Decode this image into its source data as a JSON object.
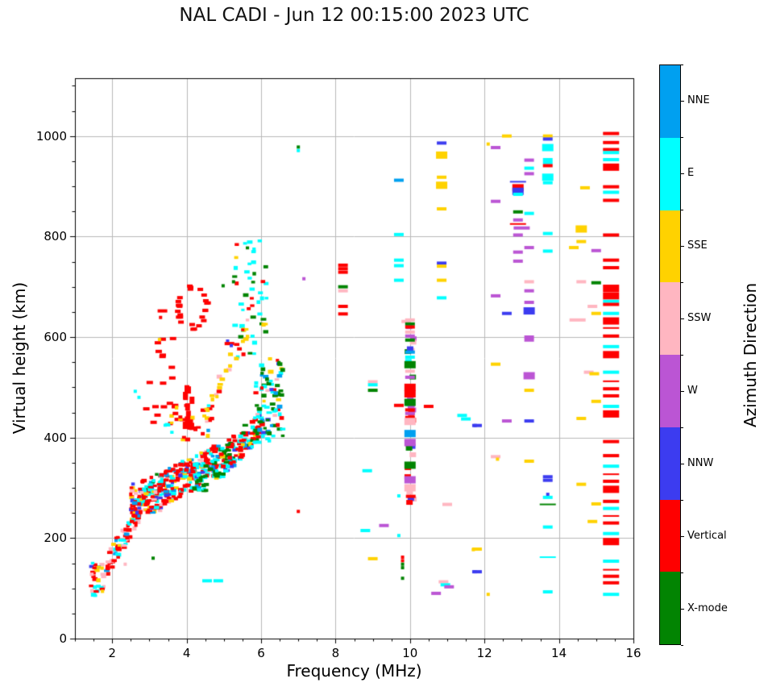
{
  "chart_data": {
    "type": "scatter",
    "title": "NAL CADI - Jun 12 00:15:00 2023 UTC",
    "xlabel": "Frequency (MHz)",
    "ylabel": "Virtual height (km)",
    "colorbar_label": "Azimuth Direction",
    "xlim": [
      1,
      16
    ],
    "ylim": [
      0,
      1115
    ],
    "xticks": [
      2,
      4,
      6,
      8,
      10,
      12,
      14,
      16
    ],
    "yticks": [
      0,
      200,
      400,
      600,
      800,
      1000
    ],
    "x_minor_step": 0.5,
    "y_minor_step": 50,
    "grid": true,
    "background": "#ffffff",
    "grid_color": "#b8b8b8",
    "spine_color": "#000000",
    "categories": [
      {
        "label": "NNE",
        "color": "#00a0f0"
      },
      {
        "label": "E",
        "color": "#00ffff"
      },
      {
        "label": "SSE",
        "color": "#ffd200"
      },
      {
        "label": "SSW",
        "color": "#ffb6c1"
      },
      {
        "label": "W",
        "color": "#bb55d4"
      },
      {
        "label": "NNW",
        "color": "#3c3cf0"
      },
      {
        "label": "Vertical",
        "color": "#fe0000"
      },
      {
        "label": "X-mode",
        "color": "#028402"
      }
    ],
    "encoding": "points are [frequency_MHz, virtual_height_km, direction_index, mark_size]; clusters approximate dense echo regions",
    "points": [
      [
        7.0,
        978,
        7,
        1
      ],
      [
        7.0,
        971,
        1,
        1
      ],
      [
        7.15,
        716,
        4,
        1
      ],
      [
        8.2,
        743,
        6,
        2
      ],
      [
        8.2,
        736,
        6,
        2
      ],
      [
        8.2,
        729,
        6,
        2
      ],
      [
        8.2,
        700,
        7,
        2
      ],
      [
        8.2,
        692,
        3,
        2
      ],
      [
        8.2,
        661,
        6,
        2
      ],
      [
        8.2,
        646,
        6,
        2
      ],
      [
        9.0,
        511,
        3,
        2
      ],
      [
        9.0,
        505,
        1,
        2
      ],
      [
        9.0,
        494,
        7,
        2
      ],
      [
        9.7,
        464,
        6,
        2
      ],
      [
        10.5,
        462,
        6,
        2
      ],
      [
        11.4,
        444,
        1,
        2
      ],
      [
        11.5,
        437,
        1,
        2
      ],
      [
        11.75,
        424,
        5,
        1
      ],
      [
        8.85,
        334,
        1,
        2
      ],
      [
        9.7,
        284,
        1,
        1
      ],
      [
        11.0,
        267,
        3,
        2
      ],
      [
        9.3,
        225,
        4,
        2
      ],
      [
        8.8,
        215,
        1,
        2
      ],
      [
        9.7,
        205,
        1,
        1
      ],
      [
        9.0,
        159,
        2,
        2
      ],
      [
        11.7,
        177,
        2,
        1
      ],
      [
        11.75,
        133,
        5,
        1
      ],
      [
        10.9,
        113,
        3,
        2
      ],
      [
        10.95,
        107,
        1,
        2
      ],
      [
        11.05,
        103,
        4,
        2
      ],
      [
        10.7,
        90,
        4,
        2
      ],
      [
        9.9,
        631,
        3,
        2
      ],
      [
        9.7,
        912,
        0,
        2
      ],
      [
        9.7,
        804,
        1,
        2
      ],
      [
        9.7,
        753,
        1,
        2
      ],
      [
        9.7,
        742,
        1,
        2
      ],
      [
        9.7,
        713,
        1,
        2
      ],
      [
        10.85,
        986,
        5,
        2
      ],
      [
        10.85,
        962,
        2,
        5
      ],
      [
        10.85,
        918,
        2,
        2
      ],
      [
        10.85,
        902,
        2,
        5
      ],
      [
        10.85,
        855,
        2,
        2
      ],
      [
        10.85,
        747,
        5,
        2
      ],
      [
        10.85,
        741,
        2,
        2
      ],
      [
        10.85,
        713,
        2,
        2
      ],
      [
        10.85,
        678,
        1,
        2
      ],
      [
        12.1,
        984,
        2,
        1
      ],
      [
        12.3,
        977,
        4,
        2
      ],
      [
        12.6,
        1000,
        2,
        2
      ],
      [
        13.7,
        1000,
        2,
        2
      ],
      [
        13.7,
        994,
        5,
        2
      ],
      [
        13.7,
        977,
        1,
        5
      ],
      [
        13.7,
        953,
        1,
        2
      ],
      [
        13.7,
        947,
        1,
        2
      ],
      [
        13.7,
        941,
        6,
        2
      ],
      [
        13.7,
        918,
        1,
        5
      ],
      [
        13.7,
        907,
        1,
        2
      ],
      [
        13.7,
        806,
        1,
        2
      ],
      [
        13.7,
        771,
        1,
        2
      ],
      [
        13.7,
        322,
        5,
        2
      ],
      [
        13.7,
        315,
        5,
        2
      ],
      [
        13.7,
        287,
        5,
        1
      ],
      [
        13.7,
        281,
        1,
        2
      ],
      [
        13.7,
        267,
        7,
        6
      ],
      [
        13.7,
        222,
        1,
        2
      ],
      [
        13.7,
        162,
        1,
        6
      ],
      [
        13.7,
        93,
        1,
        2
      ],
      [
        13.2,
        952,
        4,
        2
      ],
      [
        13.2,
        936,
        1,
        2
      ],
      [
        13.2,
        925,
        4,
        2
      ],
      [
        13.2,
        846,
        1,
        2
      ],
      [
        13.2,
        778,
        4,
        2
      ],
      [
        13.2,
        710,
        3,
        2
      ],
      [
        13.2,
        692,
        4,
        2
      ],
      [
        13.2,
        669,
        4,
        2
      ],
      [
        13.2,
        652,
        5,
        5
      ],
      [
        13.2,
        600,
        4,
        2
      ],
      [
        13.2,
        594,
        4,
        2
      ],
      [
        13.2,
        523,
        4,
        5
      ],
      [
        13.2,
        494,
        2,
        2
      ],
      [
        13.2,
        433,
        5,
        2
      ],
      [
        13.2,
        353,
        2,
        2
      ],
      [
        12.9,
        909,
        5,
        6
      ],
      [
        12.9,
        897,
        6,
        5
      ],
      [
        12.9,
        890,
        5,
        5
      ],
      [
        12.9,
        884,
        1,
        2
      ],
      [
        12.9,
        849,
        7,
        2
      ],
      [
        12.9,
        833,
        4,
        2
      ],
      [
        12.9,
        825,
        6,
        6
      ],
      [
        13.0,
        817,
        4,
        3
      ],
      [
        12.9,
        803,
        4,
        2
      ],
      [
        12.9,
        769,
        4,
        2
      ],
      [
        12.9,
        751,
        4,
        2
      ],
      [
        14.7,
        897,
        2,
        2
      ],
      [
        14.6,
        815,
        2,
        5
      ],
      [
        14.6,
        790,
        2,
        2
      ],
      [
        14.4,
        778,
        2,
        2
      ],
      [
        14.6,
        710,
        3,
        2
      ],
      [
        14.5,
        634,
        3,
        3
      ],
      [
        14.6,
        438,
        2,
        2
      ],
      [
        14.6,
        307,
        2,
        2
      ],
      [
        14.9,
        661,
        3,
        2
      ],
      [
        14.8,
        530,
        3,
        2
      ],
      [
        14.95,
        527,
        2,
        2
      ],
      [
        14.9,
        233,
        2,
        2
      ],
      [
        15.0,
        772,
        4,
        2
      ],
      [
        15.0,
        708,
        7,
        2
      ],
      [
        15.0,
        647,
        2,
        2
      ],
      [
        15.0,
        472,
        2,
        2
      ],
      [
        15.0,
        268,
        2,
        2
      ],
      [
        12.3,
        870,
        4,
        2
      ],
      [
        12.3,
        682,
        4,
        2
      ],
      [
        12.3,
        546,
        2,
        2
      ],
      [
        12.3,
        362,
        3,
        2
      ],
      [
        12.35,
        357,
        2,
        1
      ],
      [
        12.6,
        647,
        5,
        2
      ],
      [
        12.6,
        433,
        4,
        2
      ],
      [
        12.1,
        88,
        2,
        1
      ],
      [
        11.8,
        424,
        5,
        2
      ],
      [
        11.8,
        178,
        2,
        2
      ],
      [
        11.8,
        133,
        5,
        2
      ],
      [
        15.4,
        1005,
        6,
        3
      ],
      [
        15.4,
        987,
        6,
        3
      ],
      [
        15.4,
        973,
        6,
        3
      ],
      [
        15.4,
        967,
        1,
        3
      ],
      [
        15.4,
        953,
        1,
        3
      ],
      [
        15.4,
        938,
        6,
        4
      ],
      [
        15.4,
        899,
        6,
        3
      ],
      [
        15.4,
        888,
        1,
        3
      ],
      [
        15.4,
        872,
        6,
        3
      ],
      [
        15.4,
        803,
        6,
        3
      ],
      [
        15.4,
        753,
        6,
        3
      ],
      [
        15.4,
        738,
        6,
        3
      ],
      [
        15.4,
        697,
        6,
        4
      ],
      [
        15.4,
        682,
        6,
        4
      ],
      [
        15.4,
        671,
        1,
        3
      ],
      [
        15.4,
        665,
        6,
        3
      ],
      [
        15.4,
        647,
        1,
        3
      ],
      [
        15.4,
        632,
        6,
        4
      ],
      [
        15.4,
        618,
        6,
        6
      ],
      [
        15.4,
        602,
        6,
        3
      ],
      [
        15.4,
        581,
        1,
        3
      ],
      [
        15.4,
        565,
        6,
        4
      ],
      [
        15.4,
        530,
        1,
        3
      ],
      [
        15.4,
        512,
        6,
        6
      ],
      [
        15.4,
        497,
        6,
        3
      ],
      [
        15.4,
        483,
        6,
        3
      ],
      [
        15.4,
        462,
        1,
        3
      ],
      [
        15.4,
        447,
        6,
        4
      ],
      [
        15.4,
        392,
        6,
        3
      ],
      [
        15.4,
        364,
        6,
        3
      ],
      [
        15.4,
        343,
        1,
        3
      ],
      [
        15.4,
        327,
        6,
        6
      ],
      [
        15.4,
        313,
        6,
        3
      ],
      [
        15.4,
        297,
        6,
        4
      ],
      [
        15.4,
        273,
        6,
        3
      ],
      [
        15.4,
        259,
        1,
        3
      ],
      [
        15.4,
        244,
        6,
        6
      ],
      [
        15.4,
        230,
        6,
        3
      ],
      [
        15.4,
        209,
        1,
        3
      ],
      [
        15.4,
        193,
        6,
        4
      ],
      [
        15.4,
        154,
        1,
        3
      ],
      [
        15.4,
        137,
        6,
        6
      ],
      [
        15.4,
        124,
        6,
        3
      ],
      [
        15.4,
        111,
        6,
        3
      ],
      [
        15.4,
        88,
        1,
        3
      ],
      [
        4.55,
        115,
        1,
        2
      ],
      [
        4.85,
        115,
        1,
        2
      ],
      [
        7.0,
        253,
        6,
        1
      ],
      [
        3.27,
        595,
        2,
        1
      ],
      [
        2.62,
        492,
        1,
        1
      ],
      [
        2.72,
        480,
        1,
        1
      ],
      [
        3.35,
        652,
        6,
        2
      ],
      [
        3.3,
        639,
        6,
        1
      ],
      [
        2.35,
        148,
        3,
        1
      ],
      [
        3.1,
        160,
        7,
        1
      ],
      [
        5.1,
        592,
        5,
        1
      ],
      [
        4.98,
        702,
        7,
        1
      ],
      [
        5.26,
        710,
        7,
        1
      ],
      [
        5.15,
        587,
        6,
        2
      ],
      [
        5.2,
        583,
        5,
        1
      ],
      [
        9.8,
        162,
        6,
        1
      ],
      [
        9.8,
        155,
        6,
        1
      ],
      [
        9.8,
        148,
        7,
        1
      ],
      [
        9.8,
        141,
        7,
        1
      ],
      [
        9.8,
        120,
        7,
        1
      ],
      [
        10.0,
        634,
        3,
        2
      ],
      [
        10.0,
        626,
        7,
        2
      ],
      [
        10.0,
        620,
        6,
        2
      ],
      [
        10.0,
        610,
        3,
        2
      ],
      [
        10.0,
        602,
        4,
        2
      ],
      [
        10.0,
        594,
        7,
        2
      ],
      [
        10.0,
        570,
        0,
        2
      ],
      [
        10.0,
        560,
        1,
        2
      ],
      [
        10.0,
        545,
        7,
        5
      ],
      [
        10.0,
        532,
        3,
        2
      ],
      [
        10.0,
        520,
        4,
        2
      ],
      [
        10.0,
        500,
        6,
        5
      ],
      [
        10.0,
        487,
        6,
        5
      ],
      [
        10.0,
        470,
        7,
        5
      ],
      [
        10.0,
        455,
        6,
        2
      ],
      [
        10.0,
        448,
        4,
        2
      ],
      [
        10.0,
        440,
        6,
        2
      ],
      [
        10.0,
        432,
        3,
        5
      ],
      [
        10.0,
        408,
        0,
        5
      ],
      [
        10.0,
        390,
        4,
        5
      ],
      [
        10.0,
        345,
        7,
        5
      ],
      [
        10.0,
        316,
        4,
        5
      ],
      [
        10.0,
        300,
        3,
        5
      ],
      [
        10.02,
        283,
        6,
        2
      ]
    ],
    "clusters": [
      {
        "n": 30,
        "f": [
          1.42,
          1.8
        ],
        "h": [
          85,
          152
        ],
        "colors": {
          "6": 3,
          "1": 2.5,
          "2": 1.5,
          "3": 1,
          "0": 1,
          "5": 0.5
        }
      },
      {
        "n": 70,
        "f": [
          1.85,
          2.75
        ],
        "ht": [
          145,
          255
        ],
        "spread": 45,
        "colors": {
          "6": 3.5,
          "3": 2,
          "1": 2,
          "2": 1,
          "0": 1
        }
      },
      {
        "n": 90,
        "f": [
          2.5,
          3.3
        ],
        "h": [
          250,
          315
        ],
        "colors": {
          "6": 4.5,
          "1": 2,
          "0": 1,
          "3": 1,
          "2": 0.6,
          "5": 0.5,
          "7": 0.4
        }
      },
      {
        "n": 240,
        "f": [
          3.0,
          4.9
        ],
        "ht": [
          285,
          355
        ],
        "spread": 70,
        "colors": {
          "6": 5,
          "1": 2.5,
          "0": 0.8,
          "5": 0.5,
          "2": 0.5,
          "3": 0.4,
          "7": 0.3
        }
      },
      {
        "n": 55,
        "f": [
          4.2,
          5.3
        ],
        "ht": [
          300,
          370
        ],
        "spread": 55,
        "colors": {
          "7": 7,
          "1": 1.5,
          "0": 1,
          "5": 0.5
        }
      },
      {
        "n": 95,
        "f": [
          4.9,
          6.1
        ],
        "ht": [
          350,
          430
        ],
        "spread": 60,
        "colors": {
          "6": 4,
          "1": 3,
          "7": 1.2,
          "2": 1,
          "0": 0.5,
          "5": 0.3
        }
      },
      {
        "n": 80,
        "f": [
          5.85,
          6.6
        ],
        "h": [
          390,
          565
        ],
        "colors": {
          "7": 3,
          "1": 3,
          "6": 1.5,
          "0": 1,
          "3": 0.8,
          "5": 0.7,
          "2": 0.5
        }
      },
      {
        "n": 50,
        "f": [
          5.25,
          6.15
        ],
        "h": [
          560,
          800
        ],
        "colors": {
          "1": 4.5,
          "7": 2.5,
          "6": 2,
          "2": 1
        }
      },
      {
        "n": 30,
        "f": [
          4.35,
          5.65
        ],
        "ht": [
          425,
          620
        ],
        "spread": 36,
        "colors": {
          "2": 8,
          "6": 1,
          "3": 1
        }
      },
      {
        "type": "ring",
        "n": 26,
        "c": [
          4.15,
          660
        ],
        "rf": 0.38,
        "rh": 40,
        "colors": {
          "6": 1
        }
      },
      {
        "n": 20,
        "f": [
          2.85,
          4.1
        ],
        "h": [
          430,
          600
        ],
        "colors": {
          "6": 9,
          "3": 1
        },
        "sz": "dash"
      },
      {
        "n": 12,
        "f": [
          3.95,
          4.2
        ],
        "h": [
          420,
          500
        ],
        "colors": {
          "6": 1
        },
        "sz": "block"
      },
      {
        "n": 30,
        "f": [
          9.93,
          10.1
        ],
        "h": [
          268,
          648
        ],
        "colors": {
          "6": 3,
          "7": 2,
          "4": 1.8,
          "3": 1.5,
          "1": 1,
          "5": 0.7
        },
        "sz": "col"
      },
      {
        "n": 30,
        "f": [
          3.35,
          4.75
        ],
        "h": [
          395,
          465
        ],
        "colors": {
          "6": 5,
          "1": 2,
          "2": 1.5,
          "3": 0.7,
          "0": 0.5
        }
      }
    ]
  }
}
